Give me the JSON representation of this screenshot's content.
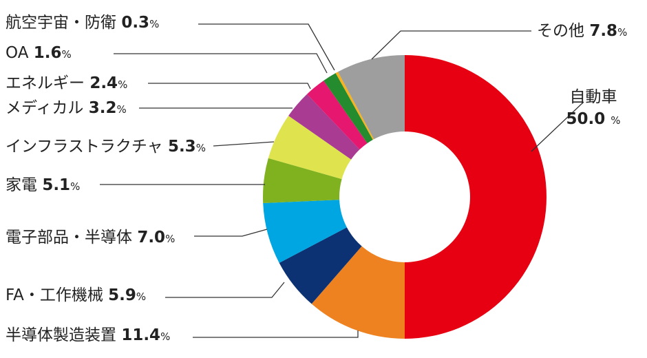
{
  "chart_data": {
    "type": "pie",
    "donut": true,
    "categories": [
      "自動車",
      "半導体製造装置",
      "FA・工作機械",
      "電子部品・半導体",
      "家電",
      "インフラストラクチャ",
      "メディカル",
      "エネルギー",
      "OA",
      "航空宇宙・防衛",
      "その他"
    ],
    "values": [
      50.0,
      11.4,
      5.9,
      7.0,
      5.1,
      5.3,
      3.2,
      2.4,
      1.6,
      0.3,
      7.8
    ],
    "value_labels": [
      "50.0",
      "11.4",
      "5.9",
      "7.0",
      "5.1",
      "5.3",
      "3.2",
      "2.4",
      "1.6",
      "0.3",
      "7.8"
    ],
    "unit": "%",
    "colors": [
      "#e60012",
      "#ef8220",
      "#0d3273",
      "#00a6e2",
      "#7fb21e",
      "#dfe44e",
      "#a93b92",
      "#e5176f",
      "#258b2f",
      "#f7b21e",
      "#9e9e9e"
    ],
    "legend": "none"
  }
}
